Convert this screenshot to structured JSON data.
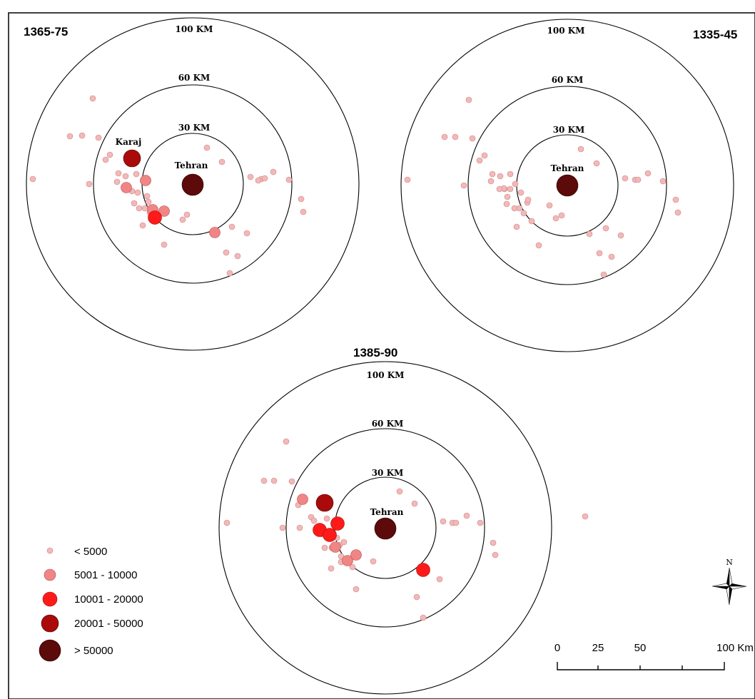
{
  "panels": [
    {
      "id": "p1",
      "title": "1365-75",
      "ring_labels": [
        "100 KM",
        "60 KM",
        "30 KM"
      ],
      "center_label": "Tehran",
      "extra_label": "Karaj"
    },
    {
      "id": "p2",
      "title": "1335-45",
      "ring_labels": [
        "100 KM",
        "60 KM",
        "30 KM"
      ],
      "center_label": "Tehran"
    },
    {
      "id": "p3",
      "title": "1385-90",
      "ring_labels": [
        "100 KM",
        "60 KM",
        "30 KM"
      ],
      "center_label": "Tehran"
    }
  ],
  "legend": {
    "items": [
      {
        "label": "< 5000",
        "color": "#f4b8b8"
      },
      {
        "label": "5001 - 10000",
        "color": "#f08585"
      },
      {
        "label": "10001 - 20000",
        "color": "#ff1a1a"
      },
      {
        "label": "20001 - 50000",
        "color": "#aa0a0a"
      },
      {
        "label": "> 50000",
        "color": "#5c0a0a"
      }
    ]
  },
  "north_arrow": {
    "label": "N"
  },
  "scale_bar": {
    "ticks": [
      "0",
      "25",
      "50",
      "100 Km"
    ]
  },
  "colors": {
    "class1": "#f4b8b8",
    "class2": "#f08585",
    "class3": "#ff1a1a",
    "class4": "#aa0a0a",
    "class5": "#5c0a0a",
    "outline": "#000000"
  }
}
